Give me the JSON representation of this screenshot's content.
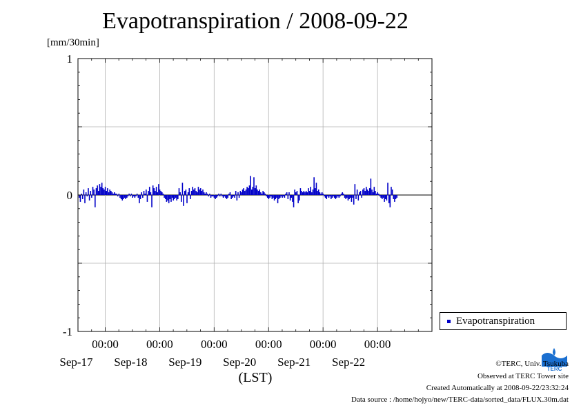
{
  "header": {
    "title": "Evapotranspiration / 2008-09-22",
    "unit": "[mm/30min]"
  },
  "chart_data": {
    "type": "bar",
    "title": "Evapotranspiration / 2008-09-22",
    "ylabel": "[mm/30min]",
    "xlabel": "(LST)",
    "ylim": [
      -1,
      1
    ],
    "yticks": [
      {
        "value": 1,
        "label": "1"
      },
      {
        "value": 0,
        "label": "0"
      },
      {
        "value": -1,
        "label": "-1"
      }
    ],
    "x_start": "2008-09-16 12:00",
    "x_end": "2008-09-22 24:00",
    "xticks": [
      {
        "time": "2008-09-17 00:00",
        "time_label": "00:00",
        "date_label": "Sep-17"
      },
      {
        "time": "2008-09-18 00:00",
        "time_label": "00:00",
        "date_label": "Sep-18"
      },
      {
        "time": "2008-09-19 00:00",
        "time_label": "00:00",
        "date_label": "Sep-19"
      },
      {
        "time": "2008-09-20 00:00",
        "time_label": "00:00",
        "date_label": "Sep-20"
      },
      {
        "time": "2008-09-21 00:00",
        "time_label": "00:00",
        "date_label": "Sep-21"
      },
      {
        "time": "2008-09-22 00:00",
        "time_label": "00:00",
        "date_label": "Sep-22"
      }
    ],
    "grid": true,
    "legend_position": "right",
    "series": [
      {
        "name": "Evapotranspiration",
        "color": "#0000c8",
        "interval_hours": 0.5,
        "values": [
          -0.02,
          -0.05,
          0.01,
          -0.03,
          0.04,
          -0.06,
          0.02,
          -0.01,
          0.05,
          -0.04,
          0.03,
          -0.02,
          0.06,
          0.04,
          -0.09,
          0.05,
          0.07,
          0.03,
          0.08,
          0.06,
          0.09,
          0.05,
          0.04,
          0.06,
          0.03,
          0.05,
          0.02,
          0.04,
          0.03,
          0.02,
          0.01,
          0.02,
          0.01,
          0.01,
          -0.01,
          0.01,
          -0.02,
          -0.03,
          -0.04,
          -0.03,
          -0.02,
          -0.03,
          -0.02,
          -0.01,
          0.01,
          -0.01,
          0.01,
          -0.02,
          -0.01,
          -0.02,
          -0.01,
          0.01,
          -0.02,
          -0.06,
          -0.03,
          0.02,
          -0.02,
          0.03,
          0.01,
          0.04,
          -0.05,
          0.03,
          0.06,
          0.02,
          -0.09,
          0.07,
          0.05,
          0.03,
          0.06,
          0.02,
          0.08,
          0.04,
          0.03,
          0.02,
          0.01,
          -0.02,
          -0.03,
          -0.05,
          -0.04,
          -0.06,
          -0.03,
          -0.05,
          -0.02,
          -0.04,
          -0.03,
          -0.02,
          -0.04,
          -0.03,
          0.05,
          0.02,
          -0.05,
          0.09,
          -0.08,
          0.03,
          0.04,
          -0.06,
          0.02,
          0.05,
          -0.03,
          0.03,
          0.06,
          0.04,
          0.05,
          0.03,
          0.02,
          0.06,
          0.04,
          0.05,
          0.03,
          0.04,
          0.02,
          0.01,
          0.02,
          0.01,
          -0.01,
          0.01,
          -0.02,
          -0.01,
          -0.01,
          -0.02,
          -0.03,
          -0.02,
          -0.01,
          0.01,
          -0.01,
          0.01,
          -0.01,
          -0.02,
          -0.01,
          -0.02,
          -0.03,
          -0.02,
          0.01,
          0.02,
          -0.03,
          -0.02,
          -0.01,
          -0.02,
          0.03,
          -0.04,
          0.02,
          -0.02,
          0.03,
          0.02,
          0.04,
          0.05,
          0.03,
          0.04,
          0.06,
          0.05,
          0.07,
          0.14,
          0.04,
          0.06,
          0.13,
          0.05,
          0.07,
          0.04,
          0.03,
          0.04,
          0.02,
          0.01,
          0.03,
          0.02,
          0.01,
          -0.01,
          -0.02,
          -0.03,
          -0.02,
          -0.01,
          -0.03,
          -0.02,
          -0.04,
          -0.03,
          -0.02,
          -0.06,
          -0.03,
          -0.02,
          -0.01,
          -0.02,
          -0.01,
          -0.02,
          0.01,
          0.02,
          -0.03,
          0.02,
          -0.04,
          -0.02,
          -0.05,
          -0.09,
          0.04,
          0.02,
          0.03,
          -0.06,
          -0.04,
          0.05,
          0.03,
          0.02,
          0.03,
          0.02,
          0.03,
          0.02,
          0.05,
          0.03,
          0.06,
          0.02,
          0.04,
          0.13,
          0.05,
          0.09,
          0.03,
          0.04,
          0.02,
          0.01,
          0.02,
          0.01,
          -0.01,
          -0.02,
          -0.03,
          -0.01,
          -0.02,
          -0.01,
          -0.03,
          -0.02,
          -0.01,
          -0.02,
          -0.03,
          -0.02,
          -0.01,
          -0.02,
          -0.01,
          0.01,
          0.02,
          0.01,
          -0.02,
          -0.03,
          -0.02,
          -0.04,
          -0.03,
          -0.02,
          -0.05,
          -0.02,
          -0.07,
          0.08,
          -0.03,
          0.04,
          -0.04,
          0.02,
          0.03,
          -0.02,
          0.04,
          0.05,
          0.03,
          0.06,
          0.04,
          0.03,
          0.05,
          0.12,
          0.04,
          0.02,
          0.06,
          0.03,
          0.01,
          0.02,
          0.01,
          -0.01,
          -0.02,
          -0.03,
          -0.02,
          -0.05,
          -0.03,
          -0.04,
          0.09,
          -0.06,
          -0.09,
          0.06,
          0.04,
          -0.03,
          -0.05,
          -0.03,
          -0.02
        ]
      }
    ]
  },
  "legend": {
    "label": "Evapotranspiration",
    "color": "#0000c8"
  },
  "footer": {
    "copyright": "©TERC, Univ. Tsukuba",
    "site": "Observed at TERC Tower site",
    "created": "Created Automatically at 2008-09-22/23:32:24",
    "source": "Data source : /home/hojyo/new/TERC-data/sorted_data/FLUX.30m.dat",
    "logo_text": "TERC",
    "logo_color": "#1a6fd0"
  }
}
